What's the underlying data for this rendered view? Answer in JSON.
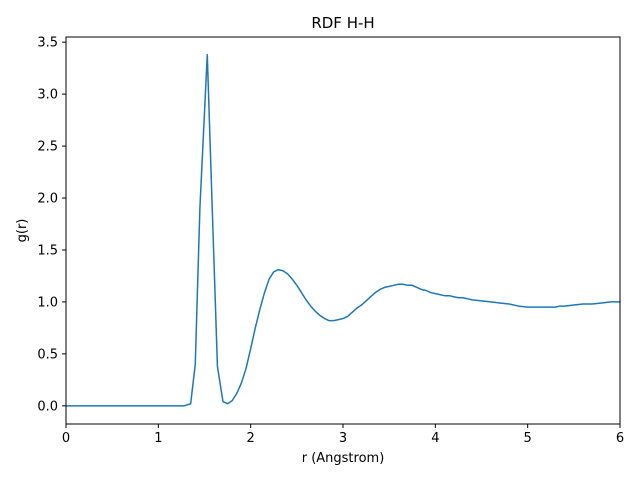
{
  "chart_data": {
    "type": "line",
    "title": "RDF H-H",
    "xlabel": "r (Angstrom)",
    "ylabel": "g(r)",
    "xlim": [
      0,
      6
    ],
    "ylim": [
      -0.175,
      3.55
    ],
    "grid": false,
    "color": "#1f77b4",
    "x_ticks": [
      "0",
      "1",
      "2",
      "3",
      "4",
      "5",
      "6"
    ],
    "y_ticks": [
      "0.0",
      "0.5",
      "1.0",
      "1.5",
      "2.0",
      "2.5",
      "3.0",
      "3.5"
    ],
    "series": [
      {
        "x": [
          0,
          0.25,
          0.5,
          0.75,
          1.0,
          1.1,
          1.2,
          1.28,
          1.35,
          1.4,
          1.45,
          1.53,
          1.58,
          1.64,
          1.7,
          1.75,
          1.8,
          1.85,
          1.9,
          1.95,
          2.0,
          2.05,
          2.1,
          2.15,
          2.2,
          2.25,
          2.3,
          2.35,
          2.4,
          2.45,
          2.5,
          2.55,
          2.6,
          2.65,
          2.7,
          2.75,
          2.8,
          2.85,
          2.9,
          2.95,
          3.0,
          3.05,
          3.1,
          3.15,
          3.2,
          3.25,
          3.3,
          3.35,
          3.4,
          3.45,
          3.5,
          3.55,
          3.6,
          3.65,
          3.7,
          3.75,
          3.8,
          3.85,
          3.9,
          3.95,
          4.0,
          4.05,
          4.1,
          4.15,
          4.2,
          4.25,
          4.3,
          4.35,
          4.4,
          4.5,
          4.6,
          4.7,
          4.8,
          4.9,
          5.0,
          5.1,
          5.2,
          5.25,
          5.3,
          5.35,
          5.4,
          5.5,
          5.6,
          5.7,
          5.8,
          5.9,
          6.0
        ],
        "values": [
          0,
          0,
          0,
          0,
          0,
          0,
          0,
          0,
          0.02,
          0.4,
          1.9,
          3.38,
          2.0,
          0.38,
          0.04,
          0.02,
          0.05,
          0.12,
          0.22,
          0.36,
          0.55,
          0.75,
          0.93,
          1.09,
          1.22,
          1.29,
          1.31,
          1.3,
          1.27,
          1.22,
          1.16,
          1.09,
          1.02,
          0.96,
          0.91,
          0.87,
          0.84,
          0.82,
          0.82,
          0.83,
          0.84,
          0.86,
          0.9,
          0.94,
          0.97,
          1.01,
          1.05,
          1.09,
          1.12,
          1.14,
          1.15,
          1.16,
          1.17,
          1.17,
          1.16,
          1.16,
          1.14,
          1.12,
          1.11,
          1.09,
          1.08,
          1.07,
          1.06,
          1.06,
          1.05,
          1.04,
          1.04,
          1.03,
          1.02,
          1.01,
          1.0,
          0.99,
          0.98,
          0.96,
          0.95,
          0.95,
          0.95,
          0.95,
          0.95,
          0.96,
          0.96,
          0.97,
          0.98,
          0.98,
          0.99,
          1.0,
          1.0
        ]
      }
    ]
  }
}
